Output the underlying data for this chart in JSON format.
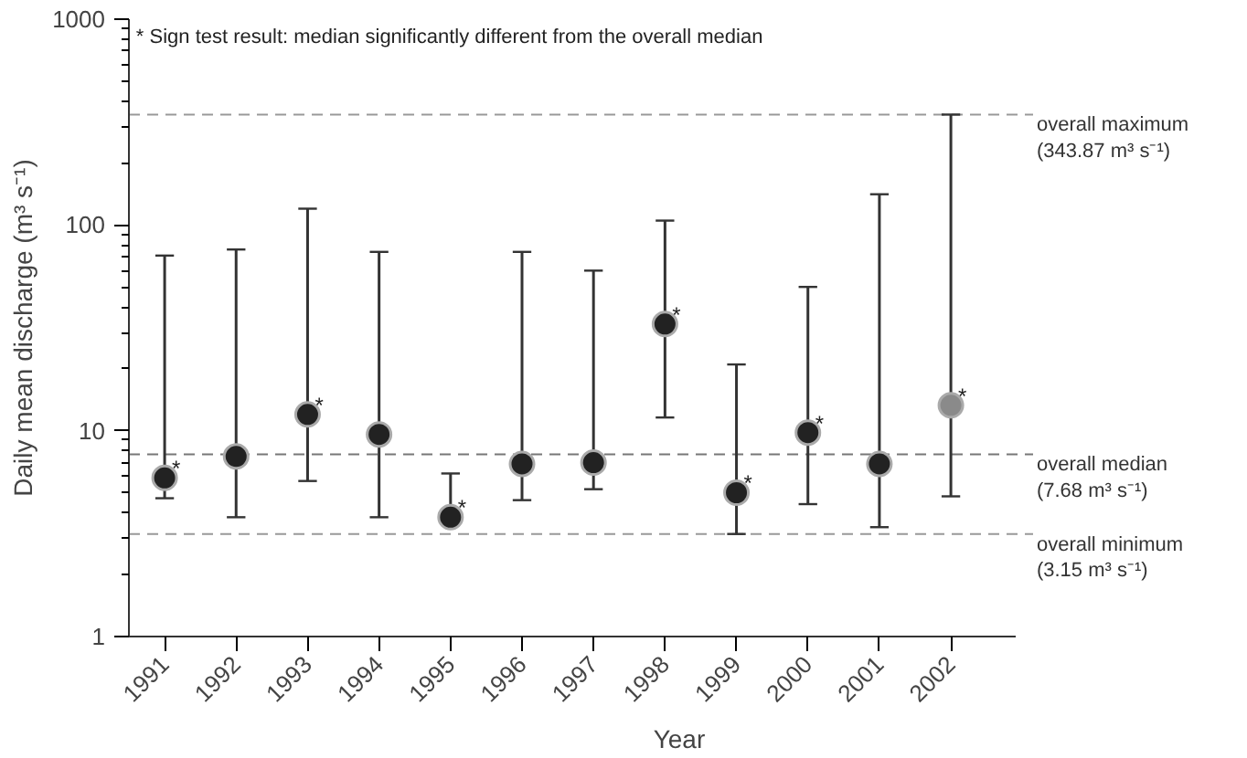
{
  "chart_data": {
    "type": "scatter",
    "categories": [
      "1991",
      "1992",
      "1993",
      "1994",
      "1995",
      "1996",
      "1997",
      "1998",
      "1999",
      "2000",
      "2001",
      "2002"
    ],
    "values": [
      5.9,
      7.5,
      12,
      9.6,
      3.8,
      6.9,
      7.0,
      33,
      5.0,
      9.8,
      6.9,
      13.3
    ],
    "errors": [
      [
        4.7,
        71
      ],
      [
        3.8,
        76
      ],
      [
        5.7,
        120
      ],
      [
        3.8,
        74
      ],
      [
        3.7,
        6.2
      ],
      [
        4.6,
        74
      ],
      [
        5.2,
        60
      ],
      [
        11.6,
        105
      ],
      [
        3.15,
        21
      ],
      [
        4.4,
        50
      ],
      [
        3.4,
        141
      ],
      [
        4.8,
        343.87
      ]
    ],
    "colors": [
      "#222222",
      "#222222",
      "#222222",
      "#222222",
      "#222222",
      "#222222",
      "#222222",
      "#222222",
      "#222222",
      "#222222",
      "#222222",
      "#8a8a8a"
    ],
    "marker": "circle",
    "xlabel": "Year",
    "ylabel": "Daily mean discharge (m³ s⁻¹)",
    "log": "y",
    "ylim": [
      1,
      1000
    ],
    "yticks": [
      1,
      10,
      100,
      1000
    ],
    "grid": false,
    "ref_lines": [
      {
        "axis": "y",
        "value": 343.87,
        "label": "overall maximum\n(343.87 m³ s⁻¹)",
        "color": "#999999",
        "line_style": "dashed"
      },
      {
        "axis": "y",
        "value": 7.68,
        "label": "overall median\n(7.68 m³ s⁻¹)",
        "color": "#777777",
        "line_style": "dashed"
      },
      {
        "axis": "y",
        "value": 3.15,
        "label": "overall minimum\n(3.15 m³ s⁻¹)",
        "color": "#999999",
        "line_style": "dashed"
      }
    ],
    "annotations": [
      "* Sign test result: median significantly different from the overall median",
      {
        "text": "*",
        "x": "1991",
        "y": 5.9
      },
      {
        "text": "*",
        "x": "1993",
        "y": 12
      },
      {
        "text": "*",
        "x": "1995",
        "y": 3.8
      },
      {
        "text": "*",
        "x": "1998",
        "y": 33
      },
      {
        "text": "*",
        "x": "1999",
        "y": 5.0
      },
      {
        "text": "*",
        "x": "2000",
        "y": 9.8
      },
      {
        "text": "*",
        "x": "2002",
        "y": 13.3
      }
    ]
  }
}
